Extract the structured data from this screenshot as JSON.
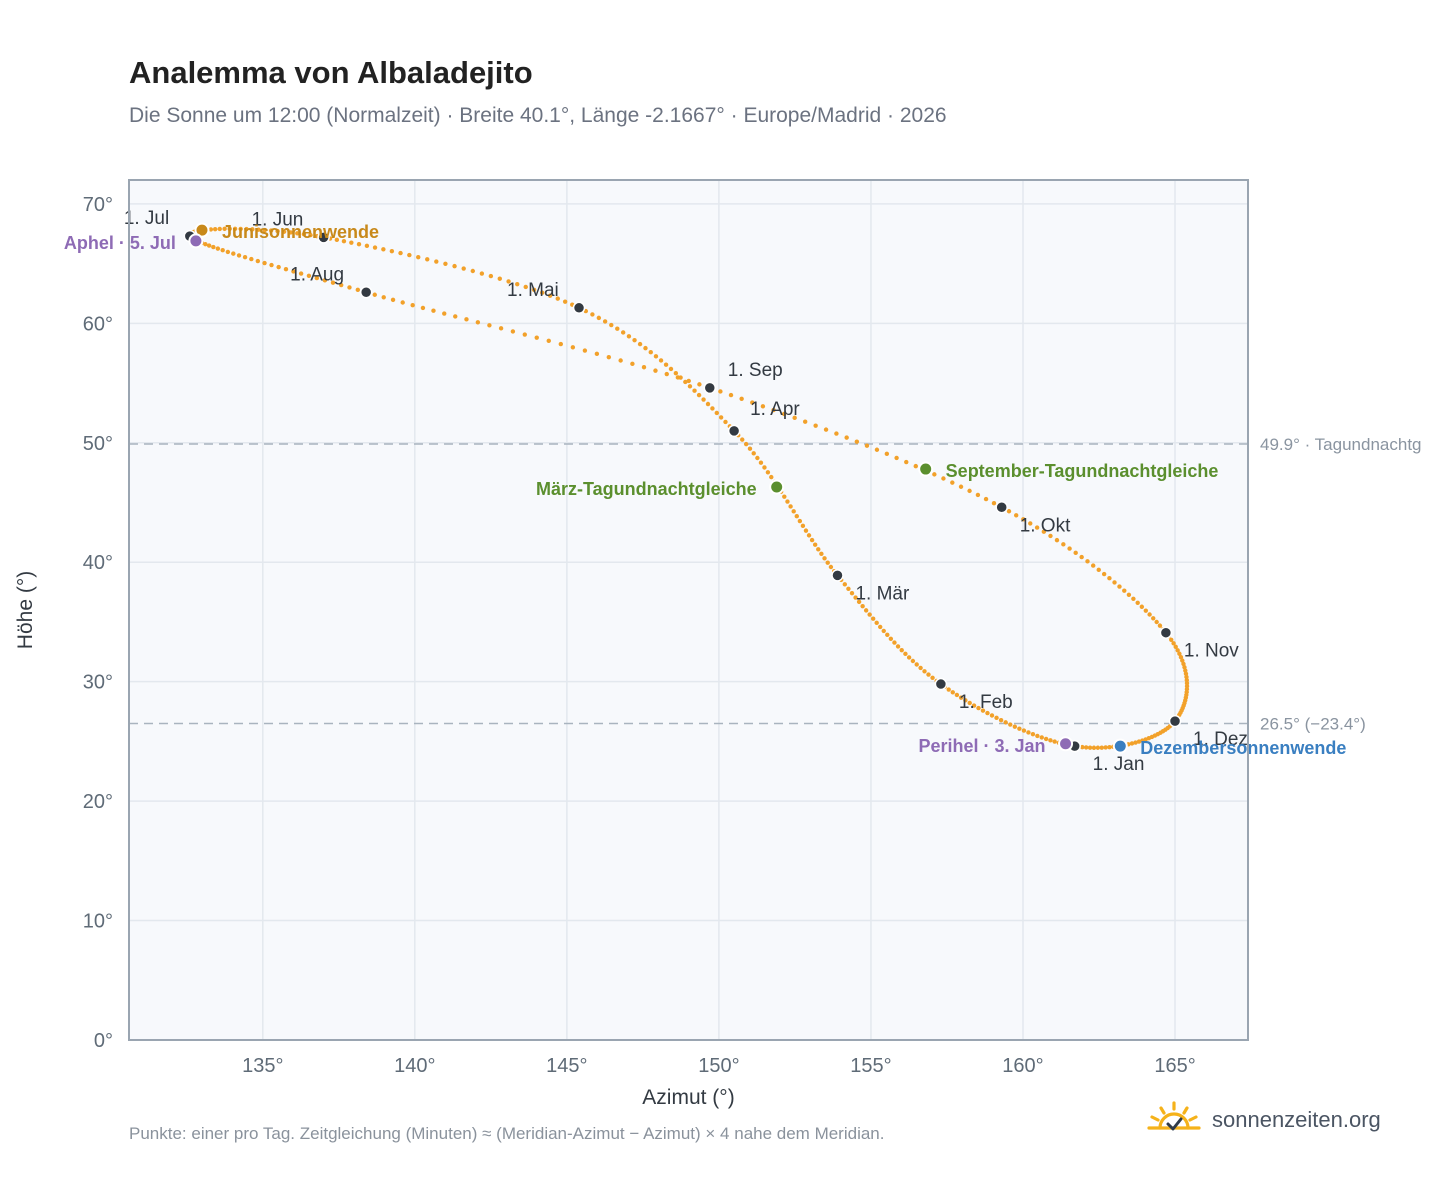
{
  "header": {
    "title": "Analemma von Albaladejito",
    "subtitle": "Die Sonne um 12:00 (Normalzeit) · Breite 40.1°, Länge -2.1667° · Europe/Madrid · 2026"
  },
  "footer": {
    "note": "Punkte: einer pro Tag. Zeitgleichung (Minuten) ≈ (Meridian-Azimut − Azimut) × 4 nahe dem Meridian.",
    "brand": "sonnenzeiten.org",
    "brand_icon": "sun-check-icon"
  },
  "chart_data": {
    "type": "scatter",
    "xlabel": "Azimut (°)",
    "ylabel": "Höhe (°)",
    "xlim": [
      130.6,
      167.4
    ],
    "ylim": [
      0,
      72
    ],
    "xticks": [
      135,
      140,
      145,
      150,
      155,
      160,
      165
    ],
    "yticks": [
      0,
      10,
      20,
      30,
      40,
      50,
      60,
      70
    ],
    "xtick_labels": [
      "135°",
      "140°",
      "145°",
      "150°",
      "155°",
      "160°",
      "165°"
    ],
    "ytick_labels": [
      "0°",
      "10°",
      "20°",
      "30°",
      "40°",
      "50°",
      "60°",
      "70°"
    ],
    "grid": true,
    "reference_lines": [
      {
        "y": 49.9,
        "label": "49.9° · Tagundnachtg"
      },
      {
        "y": 26.5,
        "label": "26.5° (−23.4°)"
      }
    ],
    "months": [
      {
        "label": "1. Jan",
        "az": 161.7,
        "alt": 24.6
      },
      {
        "label": "1. Feb",
        "az": 157.3,
        "alt": 29.8
      },
      {
        "label": "1. Mär",
        "az": 153.9,
        "alt": 38.9
      },
      {
        "label": "1. Apr",
        "az": 150.5,
        "alt": 51.0
      },
      {
        "label": "1. Mai",
        "az": 145.4,
        "alt": 61.3
      },
      {
        "label": "1. Jun",
        "az": 137.0,
        "alt": 67.2
      },
      {
        "label": "1. Jul",
        "az": 132.6,
        "alt": 67.3
      },
      {
        "label": "1. Aug",
        "az": 138.4,
        "alt": 62.6
      },
      {
        "label": "1. Sep",
        "az": 149.7,
        "alt": 54.6
      },
      {
        "label": "1. Okt",
        "az": 159.3,
        "alt": 44.6
      },
      {
        "label": "1. Nov",
        "az": 164.7,
        "alt": 34.1
      },
      {
        "label": "1. Dez",
        "az": 165.0,
        "alt": 26.7
      }
    ],
    "events": [
      {
        "label": "Junisonnenwende",
        "az": 133.0,
        "alt": 67.8,
        "color": "#c8891a"
      },
      {
        "label": "Aphel · 5. Jul",
        "az": 132.8,
        "alt": 66.9,
        "color": "#8e6bb5"
      },
      {
        "label": "März-Tagundnachtgleiche",
        "az": 151.9,
        "alt": 46.3,
        "color": "#5b8f2e"
      },
      {
        "label": "September-Tagundnachtgleiche",
        "az": 156.8,
        "alt": 47.8,
        "color": "#5b8f2e"
      },
      {
        "label": "Perihel · 3. Jan",
        "az": 161.4,
        "alt": 24.8,
        "color": "#8e6bb5"
      },
      {
        "label": "Dezembersonnenwende",
        "az": 163.2,
        "alt": 24.6,
        "color": "#3a7fc1"
      }
    ],
    "colors": {
      "path": "#f2a12a",
      "month_marker": "#333a42",
      "plot_background": "#f7f9fc",
      "grid": "#e3e8ee",
      "frame": "#9aa5b1",
      "reference_line": "#a9b4bf"
    }
  }
}
